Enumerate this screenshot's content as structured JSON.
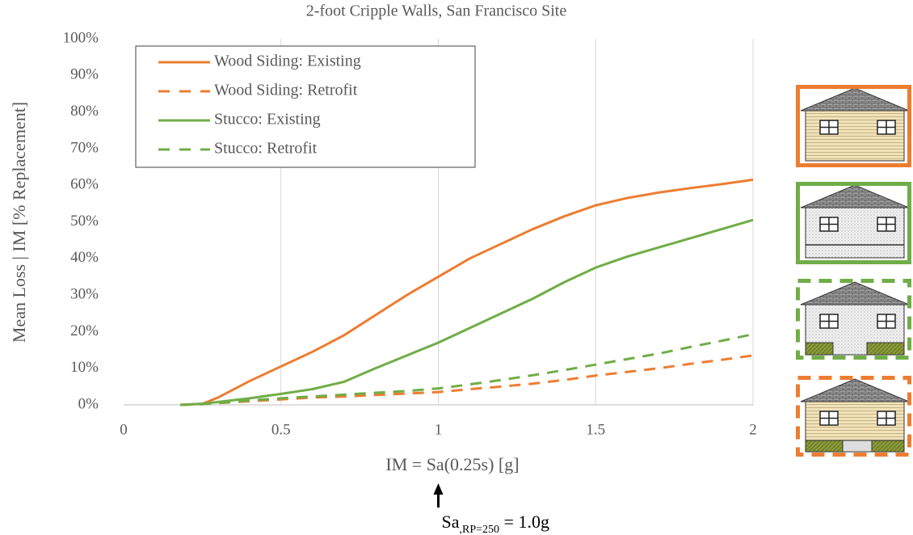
{
  "chart_data": {
    "type": "line",
    "title": "2-foot Cripple Walls, San Francisco Site",
    "x_label": "IM = Sa(0.25s) [g]",
    "y_label": "Mean Loss | IM  [% Replacement]",
    "x": [
      0.18,
      0.25,
      0.3,
      0.4,
      0.5,
      0.6,
      0.7,
      0.8,
      0.9,
      1.0,
      1.1,
      1.2,
      1.3,
      1.4,
      1.5,
      1.6,
      1.7,
      1.8,
      1.9,
      2.0
    ],
    "series": [
      {
        "name": "Wood Siding: Existing",
        "color": "#ed7d31",
        "linestyle": "solid",
        "values": [
          0,
          0.3,
          2,
          6.5,
          10.5,
          14.5,
          19,
          24.5,
          30,
          35,
          40,
          44,
          48,
          51.5,
          54.5,
          56.5,
          58,
          59.2,
          60.3,
          61.5
        ]
      },
      {
        "name": "Wood Siding: Retrofit",
        "color": "#ed7d31",
        "linestyle": "dashed",
        "values": [
          0,
          0.2,
          0.5,
          1,
          1.5,
          2,
          2.3,
          2.7,
          3.1,
          3.5,
          4.3,
          5,
          5.8,
          6.8,
          8,
          9,
          10,
          11.2,
          12.3,
          13.5
        ]
      },
      {
        "name": "Stucco: Existing",
        "color": "#70ad47",
        "linestyle": "solid",
        "values": [
          0,
          0.3,
          0.8,
          1.8,
          3,
          4.3,
          6.3,
          10,
          13.5,
          17,
          21,
          25,
          29,
          33.5,
          37.5,
          40.5,
          43,
          45.5,
          48,
          50.5
        ]
      },
      {
        "name": "Stucco: Retrofit",
        "color": "#70ad47",
        "linestyle": "dashed",
        "values": [
          0,
          0.2,
          0.5,
          1.2,
          1.8,
          2.3,
          2.8,
          3.3,
          3.8,
          4.5,
          5.6,
          6.8,
          8.1,
          9.5,
          11,
          12.5,
          14,
          15.8,
          17.5,
          19.3
        ]
      }
    ],
    "xlim": [
      0,
      2
    ],
    "ylim": [
      0,
      100
    ],
    "xticks": [
      0,
      0.5,
      1,
      1.5,
      2
    ],
    "yticks": [
      {
        "value": 0,
        "label": "0%"
      },
      {
        "value": 10,
        "label": "10%"
      },
      {
        "value": 20,
        "label": "20%"
      },
      {
        "value": 30,
        "label": "30%"
      },
      {
        "value": 40,
        "label": "40%"
      },
      {
        "value": 50,
        "label": "50%"
      },
      {
        "value": 60,
        "label": "60%"
      },
      {
        "value": 70,
        "label": "70%"
      },
      {
        "value": 80,
        "label": "80%"
      },
      {
        "value": 90,
        "label": "90%"
      },
      {
        "value": 100,
        "label": "100%"
      }
    ],
    "grid": "x",
    "legend": "upper left",
    "annotation": {
      "x": 1.0,
      "base": "Sa",
      "subscript": ",RP=250",
      "suffix": " = 1.0g"
    }
  }
}
